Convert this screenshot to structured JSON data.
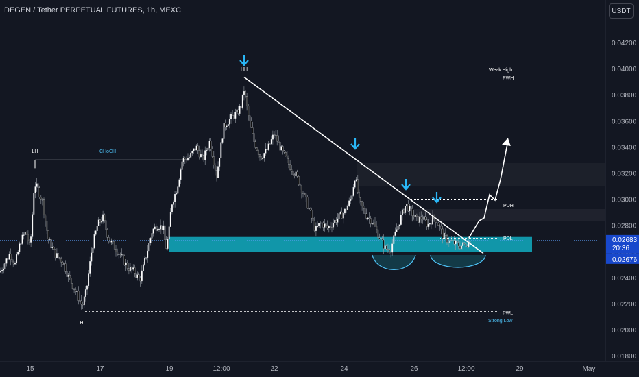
{
  "header": {
    "title": "DEGEN / Tether PERPETUAL FUTURES, 1h, MEXC",
    "currency_button": "USDT"
  },
  "colors": {
    "background": "#131722",
    "up_candle": "#ffffff",
    "down_candle": "#111111",
    "zone": "#12a4b8",
    "arrow": "#29b6f6",
    "price_tag": "#1848cc",
    "lines": "#ffffff"
  },
  "chart_data": {
    "type": "candlestick",
    "price_axis": {
      "ticks": [
        "0.04200",
        "0.04000",
        "0.03800",
        "0.03600",
        "0.03400",
        "0.03200",
        "0.03000",
        "0.02800",
        "0.02600",
        "0.02400",
        "0.02200",
        "0.02000",
        "0.01800"
      ],
      "ylim": [
        0.0177,
        0.0438
      ]
    },
    "time_axis": {
      "ticks": [
        "15",
        "17",
        "19",
        "12:00",
        "22",
        "24",
        "26",
        "12:00",
        "29",
        "May"
      ]
    },
    "current_price": {
      "value": "0.02683",
      "countdown": "20:36",
      "second_value": "0.02676"
    },
    "price_path": [
      [
        0,
        0.0244
      ],
      [
        6,
        0.025
      ],
      [
        14,
        0.0258
      ],
      [
        22,
        0.025
      ],
      [
        30,
        0.0268
      ],
      [
        38,
        0.0275
      ],
      [
        44,
        0.0262
      ],
      [
        50,
        0.0312
      ],
      [
        56,
        0.0307
      ],
      [
        62,
        0.0298
      ],
      [
        70,
        0.027
      ],
      [
        80,
        0.0258
      ],
      [
        92,
        0.0252
      ],
      [
        100,
        0.024
      ],
      [
        108,
        0.0232
      ],
      [
        114,
        0.0225
      ],
      [
        120,
        0.0218
      ],
      [
        126,
        0.023
      ],
      [
        134,
        0.0262
      ],
      [
        142,
        0.028
      ],
      [
        150,
        0.0286
      ],
      [
        158,
        0.027
      ],
      [
        166,
        0.0264
      ],
      [
        176,
        0.0257
      ],
      [
        186,
        0.0248
      ],
      [
        196,
        0.0244
      ],
      [
        204,
        0.0238
      ],
      [
        210,
        0.025
      ],
      [
        216,
        0.0263
      ],
      [
        222,
        0.0276
      ],
      [
        230,
        0.028
      ],
      [
        238,
        0.0278
      ],
      [
        242,
        0.0262
      ],
      [
        246,
        0.0272
      ],
      [
        250,
        0.0296
      ],
      [
        258,
        0.0308
      ],
      [
        266,
        0.033
      ],
      [
        276,
        0.0332
      ],
      [
        286,
        0.034
      ],
      [
        296,
        0.033
      ],
      [
        306,
        0.0345
      ],
      [
        316,
        0.0318
      ],
      [
        326,
        0.0355
      ],
      [
        336,
        0.0362
      ],
      [
        346,
        0.0366
      ],
      [
        352,
        0.0372
      ],
      [
        356,
        0.0384
      ],
      [
        362,
        0.0364
      ],
      [
        370,
        0.0345
      ],
      [
        380,
        0.0332
      ],
      [
        390,
        0.0338
      ],
      [
        400,
        0.035
      ],
      [
        410,
        0.0338
      ],
      [
        422,
        0.0326
      ],
      [
        432,
        0.0318
      ],
      [
        442,
        0.0305
      ],
      [
        452,
        0.029
      ],
      [
        460,
        0.0276
      ],
      [
        468,
        0.0282
      ],
      [
        478,
        0.0278
      ],
      [
        490,
        0.0284
      ],
      [
        502,
        0.029
      ],
      [
        512,
        0.03
      ],
      [
        518,
        0.0318
      ],
      [
        524,
        0.0298
      ],
      [
        534,
        0.0288
      ],
      [
        544,
        0.0282
      ],
      [
        554,
        0.027
      ],
      [
        562,
        0.0262
      ],
      [
        570,
        0.0262
      ],
      [
        578,
        0.0276
      ],
      [
        586,
        0.0288
      ],
      [
        592,
        0.0296
      ],
      [
        600,
        0.029
      ],
      [
        608,
        0.0284
      ],
      [
        616,
        0.0286
      ],
      [
        624,
        0.028
      ],
      [
        632,
        0.0286
      ],
      [
        638,
        0.0283
      ],
      [
        646,
        0.0272
      ],
      [
        654,
        0.0268
      ],
      [
        664,
        0.0266
      ],
      [
        672,
        0.0264
      ],
      [
        680,
        0.0266
      ],
      [
        686,
        0.0268
      ]
    ],
    "annotations": {
      "labels": [
        "HH",
        "LH",
        "CHoCH",
        "HL",
        "Weak High",
        "PWH",
        "PDH",
        "PDL",
        "PWL",
        "Strong Low"
      ],
      "levels": {
        "PWH": 0.03935,
        "PDH": 0.02995,
        "PDL": 0.027,
        "PWL": 0.0214,
        "CHoCH": 0.033
      },
      "zone": [
        0.02595,
        0.0271
      ]
    }
  }
}
